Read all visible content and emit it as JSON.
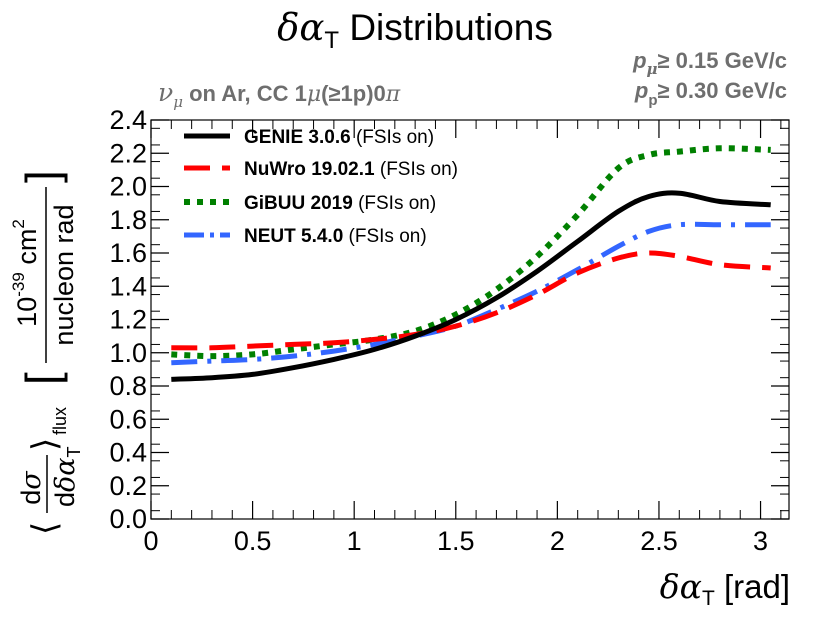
{
  "chart_data": {
    "type": "line",
    "title": {
      "symbol": "δα",
      "subscript": "T",
      "text": "Distributions"
    },
    "subtitle": {
      "nu": "ν",
      "nu_sub": "μ",
      "rest": "on Ar, CC 1",
      "mu": "μ",
      "tail": "(≥1p)0",
      "pi": "π"
    },
    "cuts": [
      {
        "sym": "p",
        "sub": "μ",
        "text": "≥ 0.15 GeV/c"
      },
      {
        "sym": "p",
        "sub": "p",
        "text": "≥ 0.30 GeV/c"
      }
    ],
    "xlabel": {
      "symbol": "δα",
      "subscript": "T",
      "unit": "[rad]"
    },
    "ylabel": {
      "open": "⟨",
      "frac_top": "dσ",
      "frac_bottom": "dδα",
      "frac_sub": "T",
      "close": "⟩",
      "flux": "flux",
      "lbracket": "[",
      "unit_exp_base": "10",
      "unit_exp": "-39",
      "unit_cm": "cm",
      "unit_cm_exp": "2",
      "unit_bottom": "nucleon rad",
      "rbracket": "]"
    },
    "xlim": [
      0,
      3.14
    ],
    "ylim": [
      0,
      2.4
    ],
    "x_ticks": [
      "0",
      "0.5",
      "1",
      "1.5",
      "2",
      "2.5",
      "3"
    ],
    "y_ticks": [
      "0.0",
      "0.2",
      "0.4",
      "0.6",
      "0.8",
      "1.0",
      "1.2",
      "1.4",
      "1.6",
      "1.8",
      "2.0",
      "2.2",
      "2.4"
    ],
    "x": [
      0.1,
      0.3,
      0.5,
      0.7,
      0.9,
      1.1,
      1.3,
      1.5,
      1.7,
      1.9,
      2.1,
      2.3,
      2.45,
      2.6,
      2.8,
      3.05
    ],
    "series": [
      {
        "name": "GENIE 3.0.6",
        "suffix": "(FSIs on)",
        "color": "#000000",
        "style": "solid",
        "values": [
          0.84,
          0.85,
          0.87,
          0.91,
          0.96,
          1.02,
          1.1,
          1.2,
          1.33,
          1.49,
          1.67,
          1.85,
          1.94,
          1.96,
          1.91,
          1.89
        ]
      },
      {
        "name": "NuWro 19.02.1",
        "suffix": "(FSIs on)",
        "color": "#ff0000",
        "style": "dashed",
        "values": [
          1.03,
          1.03,
          1.04,
          1.05,
          1.06,
          1.08,
          1.11,
          1.16,
          1.24,
          1.35,
          1.48,
          1.57,
          1.6,
          1.58,
          1.53,
          1.51
        ]
      },
      {
        "name": "GiBUU 2019",
        "suffix": "(FSIs on)",
        "color": "#008000",
        "style": "dotted",
        "values": [
          0.99,
          0.98,
          0.99,
          1.02,
          1.05,
          1.08,
          1.13,
          1.23,
          1.38,
          1.58,
          1.83,
          2.11,
          2.19,
          2.21,
          2.23,
          2.22
        ]
      },
      {
        "name": "NEUT 5.4.0",
        "suffix": "(FSIs on)",
        "color": "#3366ff",
        "style": "dashdot",
        "values": [
          0.94,
          0.95,
          0.96,
          0.98,
          1.01,
          1.05,
          1.1,
          1.16,
          1.26,
          1.37,
          1.5,
          1.64,
          1.73,
          1.77,
          1.77,
          1.77
        ]
      }
    ],
    "legend_position": "top-left",
    "grid": false
  }
}
